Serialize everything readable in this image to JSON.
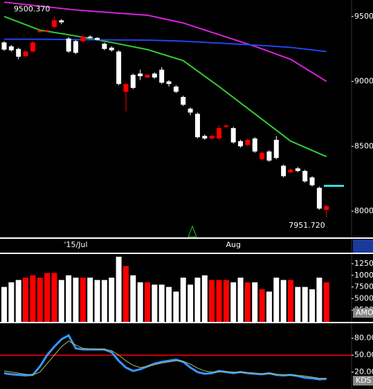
{
  "chart_data": [
    {
      "type": "candlestick",
      "open": [
        9300,
        9270,
        9250,
        9195,
        9230,
        9380,
        9385,
        9420,
        9470,
        9330,
        9310,
        9310,
        9345,
        9335,
        9290,
        9260,
        9230,
        8920,
        9050,
        9060,
        9030,
        9060,
        9090,
        9000,
        8960,
        8880,
        8790,
        8750,
        8580,
        8560,
        8560,
        8650,
        8640,
        8540,
        8510,
        8560,
        8400,
        8460,
        8550,
        8350,
        8300,
        8330,
        8310,
        8260,
        8180,
        8010
      ],
      "high": [
        9310,
        9280,
        9260,
        9240,
        9310,
        9395,
        9400,
        9500.37,
        9480,
        9340,
        9320,
        9360,
        9355,
        9340,
        9300,
        9270,
        9240,
        8990,
        9060,
        9090,
        9060,
        9070,
        9110,
        9010,
        8970,
        8890,
        8800,
        8760,
        8590,
        8590,
        8660,
        8670,
        8650,
        8550,
        8560,
        8570,
        8460,
        8470,
        8580,
        8360,
        8330,
        8340,
        8320,
        8270,
        8190,
        8050
      ],
      "low": [
        9235,
        9230,
        9170,
        9185,
        9225,
        9375,
        9380,
        9410,
        9440,
        9220,
        9210,
        9300,
        9330,
        9315,
        9240,
        9230,
        8970,
        8770,
        8940,
        9010,
        9025,
        9020,
        8980,
        8960,
        8910,
        8810,
        8740,
        8560,
        8550,
        8555,
        8550,
        8640,
        8520,
        8490,
        8500,
        8450,
        8390,
        8380,
        8400,
        8260,
        8290,
        8300,
        8220,
        8190,
        8010,
        7951.72
      ],
      "close": [
        9245,
        9240,
        9190,
        9230,
        9300,
        9390,
        9395,
        9470,
        9455,
        9230,
        9220,
        9345,
        9335,
        9320,
        9250,
        9240,
        8980,
        8980,
        8950,
        9040,
        9050,
        9030,
        8990,
        8980,
        8920,
        8820,
        8760,
        8570,
        8560,
        8580,
        8640,
        8660,
        8530,
        8500,
        8550,
        8460,
        8450,
        8390,
        8410,
        8270,
        8320,
        8310,
        8230,
        8200,
        8020,
        8040
      ],
      "up_color": "#ff0000",
      "down_color": "#ffffff",
      "ylim": [
        7798,
        9627
      ],
      "yticks": [
        8000,
        8500,
        9000,
        9500
      ],
      "xticks": [
        {
          "value": 10,
          "label": "'15/Jul"
        },
        {
          "value": 32,
          "label": "Aug"
        }
      ],
      "moving_averages": [
        {
          "color": "#33cc33",
          "x": [
            0,
            5,
            10,
            15,
            20,
            25,
            30,
            35,
            40,
            45
          ],
          "values": [
            9500,
            9395,
            9350,
            9300,
            9245,
            9160,
            8960,
            8750,
            8540,
            8420
          ]
        },
        {
          "color": "#dd22dd",
          "x": [
            0,
            5,
            10,
            15,
            20,
            25,
            30,
            35,
            40,
            45
          ],
          "values": [
            9610,
            9580,
            9550,
            9530,
            9510,
            9450,
            9360,
            9270,
            9170,
            9000
          ]
        },
        {
          "color": "#2244ee",
          "x": [
            0,
            5,
            10,
            15,
            20,
            25,
            30,
            35,
            40,
            45
          ],
          "values": [
            9325,
            9325,
            9322,
            9320,
            9318,
            9310,
            9295,
            9280,
            9262,
            9230
          ]
        }
      ],
      "annotations": [
        {
          "index": 7,
          "value": 9500.37,
          "label": "9500.370",
          "color": "#ff2222"
        },
        {
          "index": 45,
          "value": 7951.72,
          "label": "7951.720",
          "color": "#ffffff"
        }
      ],
      "level_marker": {
        "value": 8195,
        "color": "#33dddd"
      }
    },
    {
      "type": "bar",
      "label": "AMO",
      "values": [
        7500,
        8500,
        9000,
        9500,
        10000,
        9500,
        10500,
        10500,
        9000,
        10000,
        9500,
        9500,
        9500,
        9000,
        9000,
        9500,
        14000,
        12000,
        10000,
        8500,
        8500,
        8000,
        8000,
        7500,
        6500,
        9500,
        8000,
        9500,
        10000,
        9000,
        9000,
        9000,
        8500,
        9500,
        8500,
        8500,
        7000,
        6500,
        9500,
        9000,
        9000,
        7500,
        7500,
        7000,
        9500,
        8500
      ],
      "ylim": [
        0,
        14580
      ],
      "yticks": [
        12500,
        10000,
        7500,
        5000,
        2500
      ]
    },
    {
      "type": "line",
      "label": "KDS",
      "series": [
        {
          "color": "#3399ff",
          "values": [
            18,
            16,
            15,
            14,
            15,
            30,
            50,
            65,
            78,
            85,
            62,
            60,
            60,
            60,
            60,
            55,
            40,
            28,
            22,
            25,
            30,
            35,
            38,
            40,
            42,
            38,
            28,
            20,
            17,
            18,
            22,
            20,
            18,
            20,
            18,
            17,
            16,
            18,
            15,
            14,
            15,
            13,
            10,
            9,
            7,
            8
          ]
        },
        {
          "color": "#b8b860",
          "values": [
            22,
            20,
            18,
            16,
            15,
            20,
            35,
            50,
            65,
            75,
            68,
            62,
            61,
            60,
            60,
            58,
            50,
            40,
            32,
            28,
            30,
            33,
            36,
            38,
            40,
            39,
            34,
            27,
            22,
            20,
            20,
            21,
            20,
            20,
            19,
            18,
            17,
            17,
            16,
            15,
            15,
            14,
            13,
            11,
            9,
            9
          ]
        }
      ],
      "ylim": [
        -10,
        106.5
      ],
      "yticks": [
        {
          "value": 80,
          "label": "80.00"
        },
        {
          "value": 50,
          "label": "50.00"
        },
        {
          "value": 20,
          "label": "20.00"
        }
      ],
      "reference_line": {
        "value": 50,
        "color": "#ff0000"
      }
    }
  ]
}
